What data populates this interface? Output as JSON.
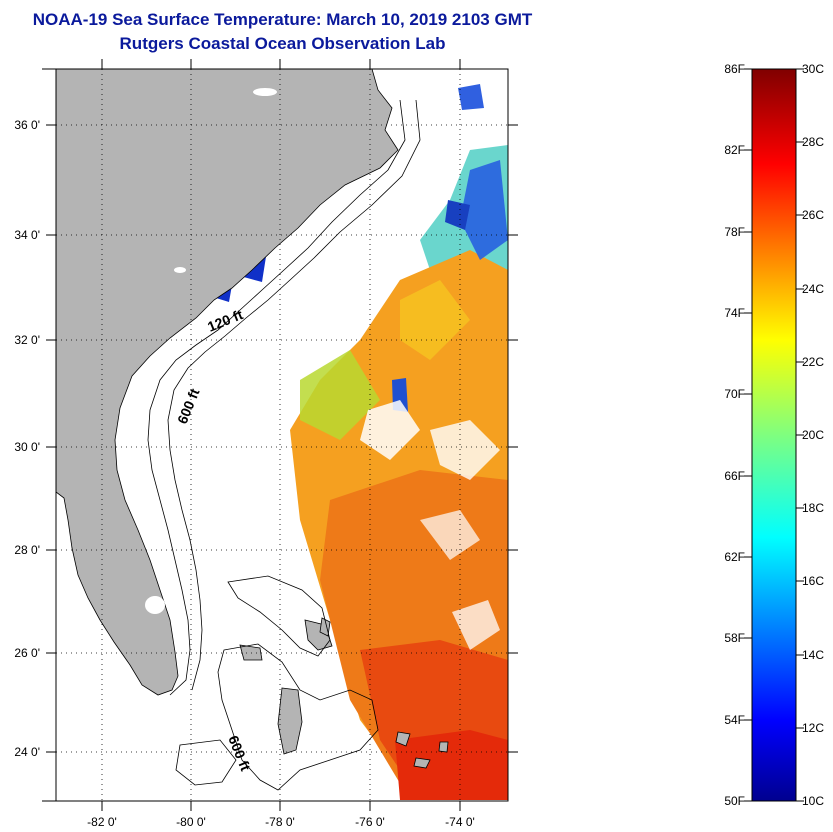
{
  "title": {
    "line1": "NOAA-19 Sea Surface Temperature:  March 10, 2019 2103 GMT",
    "line2": "Rutgers Coastal Ocean Observation Lab"
  },
  "map": {
    "lat_labels": [
      "36 0'",
      "34 0'",
      "32 0'",
      "30 0'",
      "28 0'",
      "26 0'",
      "24 0'"
    ],
    "lon_labels": [
      "-82 0'",
      "-80 0'",
      "-78 0'",
      "-76 0'",
      "-74 0'"
    ],
    "isobaths": [
      "120 ft",
      "600 ft",
      "600 ft"
    ]
  },
  "colorbar": {
    "fahrenheit": [
      "86F",
      "82F",
      "78F",
      "74F",
      "70F",
      "66F",
      "62F",
      "58F",
      "54F",
      "50F"
    ],
    "celsius": [
      "30C",
      "28C",
      "26C",
      "24C",
      "22C",
      "20C",
      "18C",
      "16C",
      "14C",
      "12C",
      "10C"
    ]
  },
  "colors": {
    "title": "#0b1a9c",
    "land": "#b4b4b4",
    "cold": "#00008f",
    "warm": "#800000"
  }
}
